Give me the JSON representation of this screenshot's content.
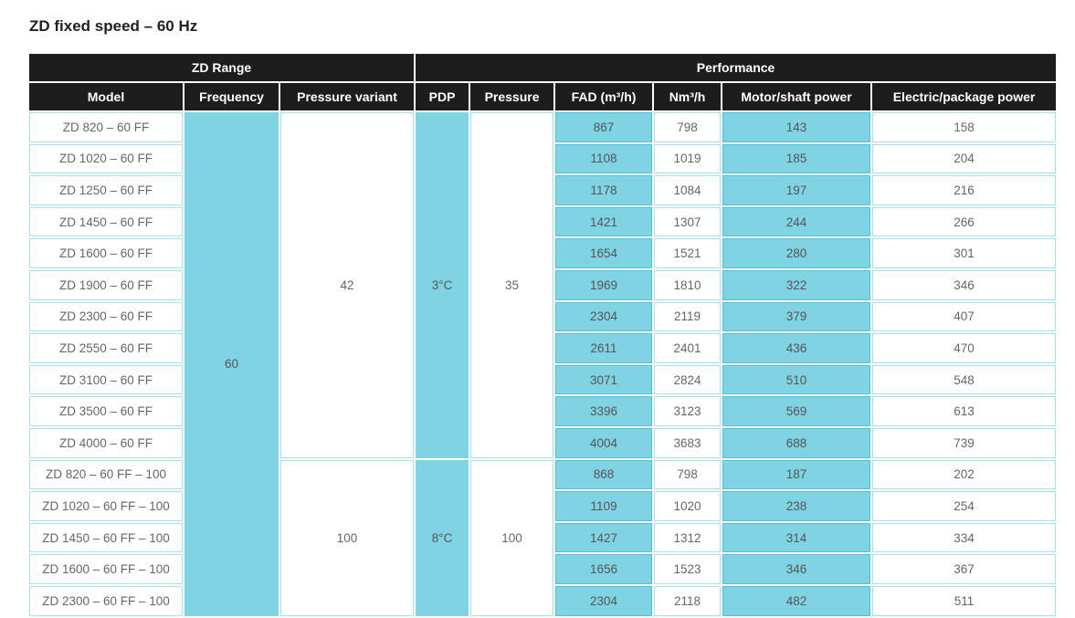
{
  "title": "ZD fixed speed – 60 Hz",
  "colors": {
    "header_bg": "#1d1d1d",
    "highlight": "#7fd3e3",
    "border": "#a7e0ea"
  },
  "table": {
    "group_headers": {
      "range": "ZD Range",
      "performance": "Performance"
    },
    "columns": [
      "Model",
      "Frequency",
      "Pressure variant",
      "PDP",
      "Pressure",
      "FAD (m³/h)",
      "Nm³/h",
      "Motor/shaft power",
      "Electric/package power"
    ],
    "frequency": "60",
    "groups": [
      {
        "pressure_variant": "42",
        "pdp": "3°C",
        "pressure": "35"
      },
      {
        "pressure_variant": "100",
        "pdp": "8°C",
        "pressure": "100"
      }
    ],
    "rows": [
      {
        "model": "ZD 820 – 60 FF",
        "fad": "867",
        "nm3h": "798",
        "motor": "143",
        "electric": "158"
      },
      {
        "model": "ZD 1020 – 60 FF",
        "fad": "1108",
        "nm3h": "1019",
        "motor": "185",
        "electric": "204"
      },
      {
        "model": "ZD 1250 – 60 FF",
        "fad": "1178",
        "nm3h": "1084",
        "motor": "197",
        "electric": "216"
      },
      {
        "model": "ZD 1450 – 60 FF",
        "fad": "1421",
        "nm3h": "1307",
        "motor": "244",
        "electric": "266"
      },
      {
        "model": "ZD 1600 – 60 FF",
        "fad": "1654",
        "nm3h": "1521",
        "motor": "280",
        "electric": "301"
      },
      {
        "model": "ZD 1900 – 60 FF",
        "fad": "1969",
        "nm3h": "1810",
        "motor": "322",
        "electric": "346"
      },
      {
        "model": "ZD 2300 – 60 FF",
        "fad": "2304",
        "nm3h": "2119",
        "motor": "379",
        "electric": "407"
      },
      {
        "model": "ZD 2550 – 60 FF",
        "fad": "2611",
        "nm3h": "2401",
        "motor": "436",
        "electric": "470"
      },
      {
        "model": "ZD 3100 – 60 FF",
        "fad": "3071",
        "nm3h": "2824",
        "motor": "510",
        "electric": "548"
      },
      {
        "model": "ZD 3500 – 60 FF",
        "fad": "3396",
        "nm3h": "3123",
        "motor": "569",
        "electric": "613"
      },
      {
        "model": "ZD 4000 – 60 FF",
        "fad": "4004",
        "nm3h": "3683",
        "motor": "688",
        "electric": "739"
      },
      {
        "model": "ZD 820 – 60 FF – 100",
        "fad": "868",
        "nm3h": "798",
        "motor": "187",
        "electric": "202"
      },
      {
        "model": "ZD 1020 – 60 FF – 100",
        "fad": "1109",
        "nm3h": "1020",
        "motor": "238",
        "electric": "254"
      },
      {
        "model": "ZD 1450 – 60 FF – 100",
        "fad": "1427",
        "nm3h": "1312",
        "motor": "314",
        "electric": "334"
      },
      {
        "model": "ZD 1600 – 60 FF – 100",
        "fad": "1656",
        "nm3h": "1523",
        "motor": "346",
        "electric": "367"
      },
      {
        "model": "ZD 2300 – 60 FF – 100",
        "fad": "2304",
        "nm3h": "2118",
        "motor": "482",
        "electric": "511"
      }
    ]
  }
}
